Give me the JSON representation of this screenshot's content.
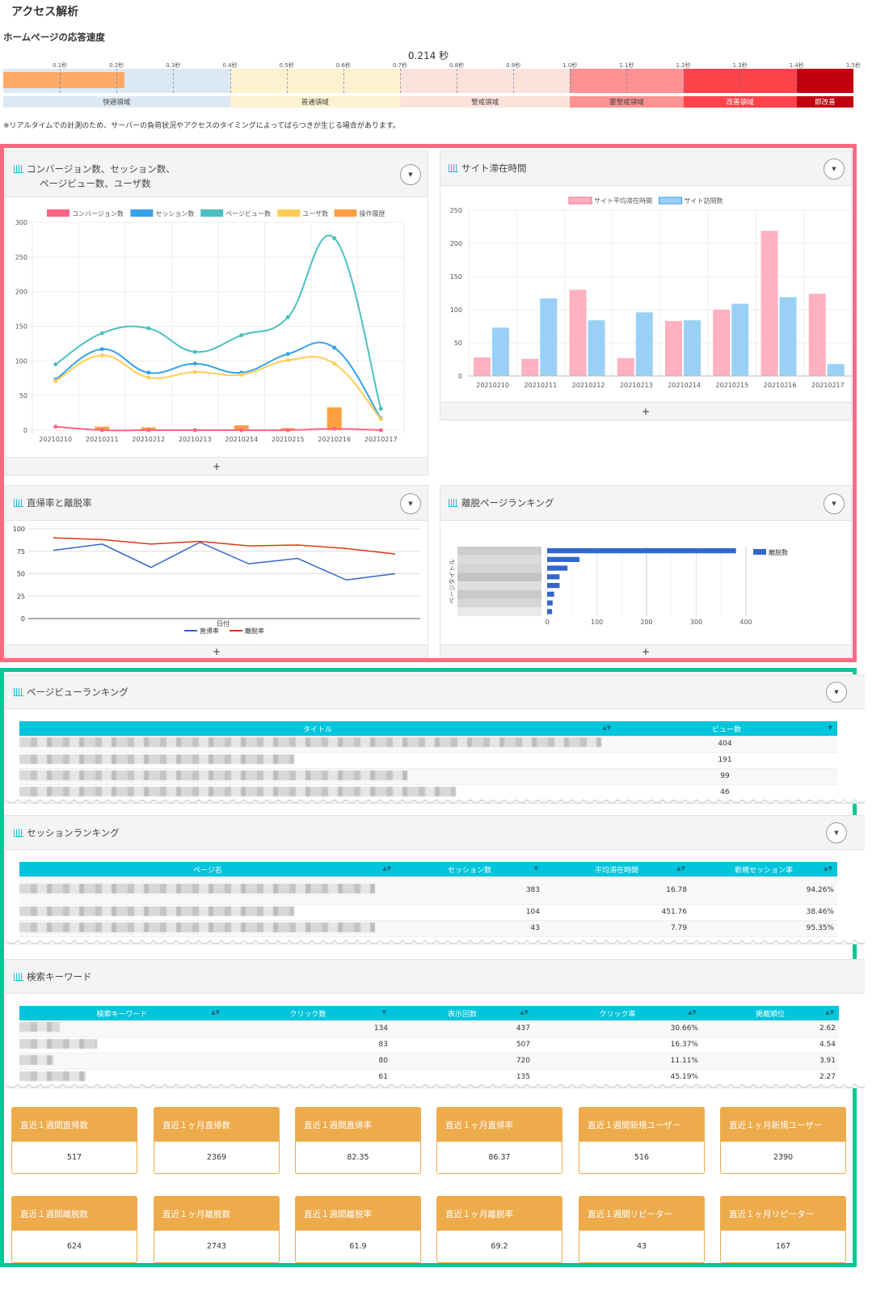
{
  "page_title": "アクセス解析",
  "speed": {
    "title": "ホームページの応答速度",
    "value_label": "0.214 秒",
    "value": 0.214,
    "ticks": [
      "0.1秒",
      "0.2秒",
      "0.3秒",
      "0.4秒",
      "0.5秒",
      "0.6秒",
      "0.7秒",
      "0.8秒",
      "0.9秒",
      "1.0秒",
      "1.1秒",
      "1.2秒",
      "1.3秒",
      "1.4秒",
      "1.5秒"
    ],
    "zones": [
      {
        "label": "快適領域",
        "from": 0,
        "to": 0.4,
        "color": "#dce9f5",
        "text": "#444"
      },
      {
        "label": "普通領域",
        "from": 0.4,
        "to": 0.7,
        "color": "#fdf1cf",
        "text": "#444"
      },
      {
        "label": "警戒領域",
        "from": 0.7,
        "to": 1.0,
        "color": "#fde2d9",
        "text": "#444"
      },
      {
        "label": "要警戒領域",
        "from": 1.0,
        "to": 1.2,
        "color": "#fe9191",
        "text": "#444"
      },
      {
        "label": "改善領域",
        "from": 1.2,
        "to": 1.4,
        "color": "#ff434b",
        "text": "#fff"
      },
      {
        "label": "即改善",
        "from": 1.4,
        "to": 1.5,
        "color": "#c0000f",
        "text": "#fff"
      }
    ],
    "note": "※リアルタイムでの計測のため、サーバーの負荷状況やアクセスのタイミングによってばらつきが生じる場合があります。"
  },
  "colors": {
    "pink_frame": "#ff6a7f",
    "green_frame": "#00c896",
    "table_header": "#00c5dc",
    "card": "#eeab4c"
  },
  "panels": {
    "conv": {
      "title1": "コンバージョン数、セッション数、",
      "title2": "ページビュー数、ユーザ数",
      "footer": "+"
    },
    "stay": {
      "title": "サイト滞在時間",
      "footer": "+"
    },
    "bounce": {
      "title": "直帰率と離脱率",
      "footer": "+"
    },
    "exit": {
      "title": "離脱ページランキング",
      "footer": "+"
    },
    "pv": {
      "title": "ページビューランキング"
    },
    "session": {
      "title": "セッションランキング"
    },
    "keyword": {
      "title": "検索キーワード"
    }
  },
  "chart_data": [
    {
      "type": "line",
      "id": "conv",
      "categories": [
        "20210210",
        "20210211",
        "20210212",
        "20210213",
        "20210214",
        "20210215",
        "20210216",
        "20210217"
      ],
      "ylim": [
        0,
        300
      ],
      "yticks": [
        0,
        50,
        100,
        150,
        200,
        250,
        300
      ],
      "series": [
        {
          "name": "コンバージョン数",
          "kind": "line",
          "color": "#ff6384",
          "values": [
            5,
            0,
            0,
            0,
            0,
            0,
            2,
            0
          ]
        },
        {
          "name": "セッション数",
          "kind": "line",
          "color": "#36a2eb",
          "values": [
            73,
            117,
            83,
            96,
            83,
            110,
            119,
            17
          ]
        },
        {
          "name": "ページビュー数",
          "kind": "line",
          "color": "#4bc0c0",
          "values": [
            95,
            140,
            147,
            113,
            137,
            163,
            277,
            31
          ]
        },
        {
          "name": "ユーザ数",
          "kind": "line",
          "color": "#ffcd56",
          "values": [
            71,
            108,
            76,
            84,
            80,
            101,
            96,
            16
          ]
        },
        {
          "name": "操作履歴",
          "kind": "bar",
          "color": "#ff9f40",
          "values": [
            0,
            5,
            4,
            0,
            7,
            3,
            33,
            0
          ]
        }
      ]
    },
    {
      "type": "bar",
      "id": "stay",
      "categories": [
        "20210210",
        "20210211",
        "20210212",
        "20210213",
        "20210214",
        "20210215",
        "20210216",
        "20210217"
      ],
      "ylim": [
        0,
        250
      ],
      "yticks": [
        0,
        50,
        100,
        150,
        200,
        250
      ],
      "series": [
        {
          "name": "サイト平均滞在時間",
          "color": "#ffb1c1",
          "values": [
            28,
            26,
            130,
            27,
            83,
            100,
            219,
            124
          ]
        },
        {
          "name": "サイト訪問数",
          "color": "#9ad0f5",
          "values": [
            73,
            117,
            84,
            96,
            84,
            109,
            119,
            18
          ]
        }
      ]
    },
    {
      "type": "line",
      "id": "bounce",
      "xlabel": "日付",
      "ylim": [
        0,
        100
      ],
      "yticks": [
        0,
        25,
        50,
        75,
        100
      ],
      "series": [
        {
          "name": "直帰率",
          "color": "#3366cc",
          "values": [
            76,
            83,
            57,
            85,
            61,
            67,
            43,
            50
          ]
        },
        {
          "name": "離脱率",
          "color": "#dc3912",
          "values": [
            90,
            88,
            83,
            86,
            81,
            82,
            78,
            72
          ]
        }
      ]
    },
    {
      "type": "bar",
      "id": "exit",
      "orientation": "horizontal",
      "ylabel": "ページタイトル",
      "xlim": [
        0,
        400
      ],
      "xticks": [
        0,
        100,
        200,
        300,
        400
      ],
      "series": [
        {
          "name": "離脱数",
          "color": "#3366cc",
          "values": [
            380,
            65,
            41,
            25,
            25,
            14,
            11,
            10
          ]
        }
      ]
    }
  ],
  "pv_table": {
    "headers": [
      "タイトル",
      "ビュー数"
    ],
    "rows": [
      {
        "views": "404"
      },
      {
        "views": "191"
      },
      {
        "views": "99"
      },
      {
        "views": "46"
      }
    ]
  },
  "session_table": {
    "headers": [
      "ページ名",
      "セッション数",
      "平均滞在時間",
      "新規セッション率"
    ],
    "rows": [
      {
        "sessions": "383",
        "avg": "16.78",
        "rate": "94.26%"
      },
      {
        "sessions": "104",
        "avg": "451.76",
        "rate": "38.46%"
      },
      {
        "sessions": "43",
        "avg": "7.79",
        "rate": "95.35%"
      }
    ]
  },
  "keyword_table": {
    "headers": [
      "検索キーワード",
      "クリック数",
      "表示回数",
      "クリック率",
      "掲載順位"
    ],
    "rows": [
      {
        "clicks": "134",
        "imp": "437",
        "ctr": "30.66%",
        "pos": "2.62"
      },
      {
        "clicks": "83",
        "imp": "507",
        "ctr": "16.37%",
        "pos": "4.54"
      },
      {
        "clicks": "80",
        "imp": "720",
        "ctr": "11.11%",
        "pos": "3.91"
      },
      {
        "clicks": "61",
        "imp": "135",
        "ctr": "45.19%",
        "pos": "2.27"
      }
    ]
  },
  "cards": [
    {
      "label": "直近１週間直帰数",
      "value": "517"
    },
    {
      "label": "直近１ヶ月直帰数",
      "value": "2369"
    },
    {
      "label": "直近１週間直帰率",
      "value": "82.35"
    },
    {
      "label": "直近１ヶ月直帰率",
      "value": "86.37"
    },
    {
      "label": "直近１週間新規ユーザー",
      "value": "516"
    },
    {
      "label": "直近１ヶ月新規ユーザー",
      "value": "2390"
    },
    {
      "label": "直近１週間離脱数",
      "value": "624"
    },
    {
      "label": "直近１ヶ月離脱数",
      "value": "2743"
    },
    {
      "label": "直近１週間離脱率",
      "value": "61.9"
    },
    {
      "label": "直近１ヶ月離脱率",
      "value": "69.2"
    },
    {
      "label": "直近１週間リピーター",
      "value": "43"
    },
    {
      "label": "直近１ヶ月リピーター",
      "value": "167"
    }
  ]
}
